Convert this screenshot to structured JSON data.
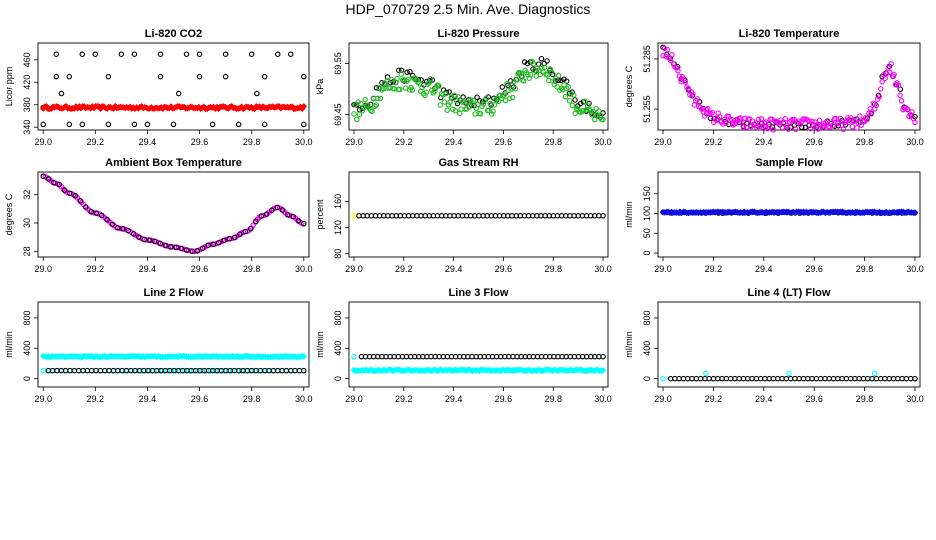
{
  "figure_title": "HDP_070729  2.5 Min. Ave. Diagnostics",
  "colors": {
    "black": "#000000",
    "red": "#ff0000",
    "green": "#22bb22",
    "magenta": "#ff00ff",
    "yellow": "#ffff00",
    "blue": "#1010e0",
    "cyan": "#00ffff"
  },
  "chart_data": [
    {
      "id": "co2",
      "type": "scatter",
      "title": "Li-820 CO2",
      "ylabel": "Licor ppm",
      "xlim": [
        28.98,
        30.02
      ],
      "ylim": [
        335,
        490
      ],
      "xticks": [
        29.0,
        29.2,
        29.4,
        29.6,
        29.8,
        30.0
      ],
      "xtick_labels": [
        "29.0",
        "29.2",
        "29.4",
        "29.6",
        "29.8",
        "30.0"
      ],
      "yticks": [
        340,
        380,
        420,
        460
      ],
      "ytick_labels": [
        "340",
        "380",
        "420",
        "460"
      ],
      "series": [
        {
          "name": "black-circles",
          "color": "black",
          "marker": "circle",
          "x": [
            29.0,
            29.0,
            29.05,
            29.05,
            29.1,
            29.15,
            29.15,
            29.2,
            29.25,
            29.3,
            29.35,
            29.35,
            29.4,
            29.45,
            29.5,
            29.55,
            29.6,
            29.65,
            29.7,
            29.75,
            29.8,
            29.85,
            29.9,
            29.95,
            30.0,
            29.1,
            29.25,
            29.45,
            29.6,
            29.7,
            29.85,
            30.0,
            29.07,
            29.52,
            29.82
          ],
          "y": [
            375,
            345,
            470,
            430,
            345,
            470,
            345,
            470,
            345,
            470,
            470,
            345,
            345,
            470,
            345,
            470,
            470,
            345,
            470,
            345,
            470,
            345,
            470,
            470,
            345,
            430,
            430,
            430,
            430,
            430,
            430,
            430,
            400,
            400,
            400
          ]
        },
        {
          "name": "red-band",
          "color": "red",
          "marker": "diamond",
          "x_range": [
            29.0,
            30.0
          ],
          "count": 160,
          "y_center": 375,
          "y_jitter": 2.5
        }
      ]
    },
    {
      "id": "pressure",
      "type": "scatter",
      "title": "Li-820 Pressure",
      "ylabel": "kPa",
      "xlim": [
        28.98,
        30.02
      ],
      "ylim": [
        69.42,
        69.59
      ],
      "xticks": [
        29.0,
        29.2,
        29.4,
        29.6,
        29.8,
        30.0
      ],
      "xtick_labels": [
        "29.0",
        "29.2",
        "29.4",
        "29.6",
        "29.8",
        "30.0"
      ],
      "yticks": [
        69.45,
        69.55
      ],
      "ytick_labels": [
        "69.45",
        "69.55"
      ],
      "series": [
        {
          "name": "black-circles",
          "color": "black",
          "marker": "circle",
          "curve": "pressure",
          "count": 90,
          "offset": 0.005,
          "jitter": 0.012
        },
        {
          "name": "green-circles",
          "color": "green",
          "marker": "circle",
          "curve": "pressure",
          "count": 180,
          "offset": -0.005,
          "jitter": 0.018
        }
      ]
    },
    {
      "id": "temperature",
      "type": "scatter",
      "title": "Li-820 Temperature",
      "ylabel": "degrees C",
      "xlim": [
        28.98,
        30.02
      ],
      "ylim": [
        51.2425,
        51.2945
      ],
      "xticks": [
        29.0,
        29.2,
        29.4,
        29.6,
        29.8,
        30.0
      ],
      "xtick_labels": [
        "29.0",
        "29.2",
        "29.4",
        "29.6",
        "29.8",
        "30.0"
      ],
      "yticks": [
        51.255,
        51.285
      ],
      "ytick_labels": [
        "51.255",
        "51.285"
      ],
      "series": [
        {
          "name": "black-circles",
          "color": "black",
          "marker": "circle",
          "curve": "temperature",
          "count": 70,
          "offset": 0,
          "jitter": 0.002
        },
        {
          "name": "magenta-circles",
          "color": "magenta",
          "marker": "circle",
          "curve": "temperature",
          "count": 170,
          "offset": 0,
          "jitter": 0.0035
        }
      ]
    },
    {
      "id": "ambient",
      "type": "scatter",
      "title": "Ambient Box Temperature",
      "ylabel": "degrees C",
      "xlim": [
        28.98,
        30.02
      ],
      "ylim": [
        27.6,
        33.6
      ],
      "xticks": [
        29.0,
        29.2,
        29.4,
        29.6,
        29.8,
        30.0
      ],
      "xtick_labels": [
        "29.0",
        "29.2",
        "29.4",
        "29.6",
        "29.8",
        "30.0"
      ],
      "yticks": [
        28,
        30,
        32
      ],
      "ytick_labels": [
        "28",
        "30",
        "32"
      ],
      "series": [
        {
          "name": "magenta-circles",
          "color": "magenta",
          "marker": "circle",
          "curve": "ambient",
          "count": 130,
          "offset": 0,
          "jitter": 0
        },
        {
          "name": "black-circles",
          "color": "black",
          "marker": "circle",
          "curve": "ambient",
          "count": 50,
          "offset": 0,
          "jitter": 0
        }
      ]
    },
    {
      "id": "rh",
      "type": "scatter",
      "title": "Gas Stream RH",
      "ylabel": "percent",
      "xlim": [
        28.98,
        30.02
      ],
      "ylim": [
        75,
        205
      ],
      "xticks": [
        29.0,
        29.2,
        29.4,
        29.6,
        29.8,
        30.0
      ],
      "xtick_labels": [
        "29.0",
        "29.2",
        "29.4",
        "29.6",
        "29.8",
        "30.0"
      ],
      "yticks": [
        80,
        120,
        160
      ],
      "ytick_labels": [
        "80",
        "120",
        "160"
      ],
      "series": [
        {
          "name": "yellow-point",
          "color": "yellow",
          "marker": "circle",
          "x": [
            29.0
          ],
          "y": [
            138
          ]
        },
        {
          "name": "black-circles",
          "color": "black",
          "marker": "circle",
          "x_range": [
            29.02,
            30.0
          ],
          "count": 60,
          "y_center": 138,
          "y_jitter": 0
        }
      ]
    },
    {
      "id": "sample",
      "type": "scatter",
      "title": "Sample Flow",
      "ylabel": "ml/min",
      "xlim": [
        28.98,
        30.02
      ],
      "ylim": [
        -10,
        205
      ],
      "xticks": [
        29.0,
        29.2,
        29.4,
        29.6,
        29.8,
        30.0
      ],
      "xtick_labels": [
        "29.0",
        "29.2",
        "29.4",
        "29.6",
        "29.8",
        "30.0"
      ],
      "yticks": [
        0,
        50,
        100,
        150
      ],
      "ytick_labels": [
        "0",
        "50",
        "100",
        "150"
      ],
      "series": [
        {
          "name": "black-circles",
          "color": "black",
          "marker": "circle",
          "x_range": [
            29.0,
            30.0
          ],
          "count": 60,
          "y_center": 102,
          "y_jitter": 1.5
        },
        {
          "name": "blue-band",
          "color": "blue",
          "marker": "diamond",
          "x_range": [
            29.0,
            30.0
          ],
          "count": 150,
          "y_center": 103,
          "y_jitter": 1.5
        }
      ]
    },
    {
      "id": "line2",
      "type": "scatter",
      "title": "Line 2 Flow",
      "ylabel": "ml/min",
      "xlim": [
        28.98,
        30.02
      ],
      "ylim": [
        -110,
        1010
      ],
      "xticks": [
        29.0,
        29.2,
        29.4,
        29.6,
        29.8,
        30.0
      ],
      "xtick_labels": [
        "29.0",
        "29.2",
        "29.4",
        "29.6",
        "29.8",
        "30.0"
      ],
      "yticks": [
        0,
        400,
        800
      ],
      "ytick_labels": [
        "0",
        "400",
        "800"
      ],
      "series": [
        {
          "name": "cyan-upper",
          "color": "cyan",
          "marker": "diamond",
          "x_range": [
            29.0,
            30.0
          ],
          "count": 150,
          "y_center": 290,
          "y_jitter": 8
        },
        {
          "name": "cyan-lower",
          "color": "cyan",
          "marker": "circle",
          "x_range": [
            29.0,
            30.0
          ],
          "count": 60,
          "y_center": 105,
          "y_jitter": 0
        },
        {
          "name": "black-circles",
          "color": "black",
          "marker": "circle",
          "x_range": [
            29.02,
            30.0
          ],
          "count": 60,
          "y_center": 105,
          "y_jitter": 0
        }
      ]
    },
    {
      "id": "line3",
      "type": "scatter",
      "title": "Line 3 Flow",
      "ylabel": "ml/min",
      "xlim": [
        28.98,
        30.02
      ],
      "ylim": [
        -110,
        1010
      ],
      "xticks": [
        29.0,
        29.2,
        29.4,
        29.6,
        29.8,
        30.0
      ],
      "xtick_labels": [
        "29.0",
        "29.2",
        "29.4",
        "29.6",
        "29.8",
        "30.0"
      ],
      "yticks": [
        0,
        400,
        800
      ],
      "ytick_labels": [
        "0",
        "400",
        "800"
      ],
      "series": [
        {
          "name": "cyan-lower",
          "color": "cyan",
          "marker": "diamond",
          "x_range": [
            29.0,
            30.0
          ],
          "count": 150,
          "y_center": 110,
          "y_jitter": 8
        },
        {
          "name": "cyan-upper",
          "color": "cyan",
          "marker": "circle",
          "x": [
            29.0
          ],
          "y": [
            290
          ]
        },
        {
          "name": "black-circles",
          "color": "black",
          "marker": "circle",
          "x_range": [
            29.03,
            30.0
          ],
          "count": 60,
          "y_center": 290,
          "y_jitter": 0
        }
      ]
    },
    {
      "id": "line4",
      "type": "scatter",
      "title": "Line 4 (LT) Flow",
      "ylabel": "ml/min",
      "xlim": [
        28.98,
        30.02
      ],
      "ylim": [
        -110,
        1010
      ],
      "xticks": [
        29.0,
        29.2,
        29.4,
        29.6,
        29.8,
        30.0
      ],
      "xtick_labels": [
        "29.0",
        "29.2",
        "29.4",
        "29.6",
        "29.8",
        "30.0"
      ],
      "yticks": [
        0,
        400,
        800
      ],
      "ytick_labels": [
        "0",
        "400",
        "800"
      ],
      "series": [
        {
          "name": "cyan-points",
          "color": "cyan",
          "marker": "circle",
          "x": [
            29.0,
            29.17,
            29.5,
            29.84
          ],
          "y": [
            0,
            70,
            70,
            70
          ]
        },
        {
          "name": "black-circles",
          "color": "black",
          "marker": "circle",
          "x_range": [
            29.03,
            30.0
          ],
          "count": 58,
          "y_center": 0,
          "y_jitter": 0
        }
      ]
    }
  ]
}
